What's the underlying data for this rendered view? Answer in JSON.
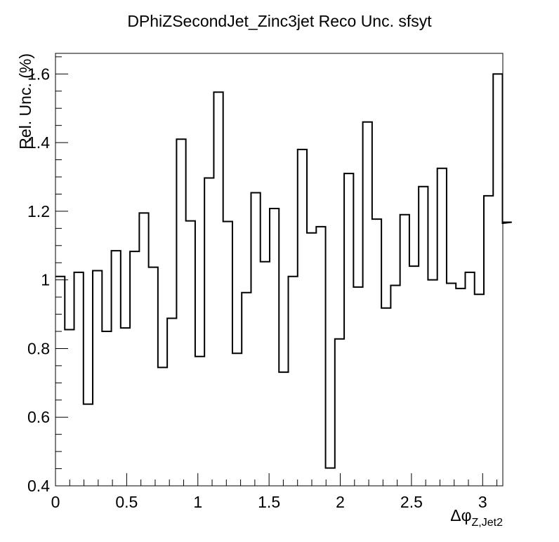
{
  "chart_data": {
    "type": "histogram",
    "title": "DPhiZSecondJet_Zinc3jet Reco Unc. sfsyt",
    "xlabel": {
      "symbol": "Δφ",
      "subscript": "Z,Jet2"
    },
    "ylabel": "Rel. Unc. (%)",
    "xlim": [
      0,
      3.1416
    ],
    "ylim": [
      0.4,
      1.66
    ],
    "xticks": [
      {
        "value": 0,
        "label": "0"
      },
      {
        "value": 0.5,
        "label": "0.5"
      },
      {
        "value": 1,
        "label": "1"
      },
      {
        "value": 1.5,
        "label": "1.5"
      },
      {
        "value": 2,
        "label": "2"
      },
      {
        "value": 2.5,
        "label": "2.5"
      },
      {
        "value": 3,
        "label": "3"
      }
    ],
    "yticks": [
      {
        "value": 0.4,
        "label": "0.4"
      },
      {
        "value": 0.6,
        "label": "0.6"
      },
      {
        "value": 0.8,
        "label": "0.8"
      },
      {
        "value": 1.0,
        "label": "1"
      },
      {
        "value": 1.2,
        "label": "1.2"
      },
      {
        "value": 1.4,
        "label": "1.4"
      },
      {
        "value": 1.6,
        "label": "1.6"
      }
    ],
    "bin_width": 0.0654,
    "values": [
      1.01,
      0.855,
      1.022,
      0.638,
      1.027,
      0.85,
      1.085,
      0.86,
      1.083,
      1.195,
      1.037,
      0.745,
      0.888,
      1.41,
      1.172,
      0.777,
      1.297,
      1.547,
      1.17,
      0.786,
      0.963,
      1.254,
      1.053,
      1.208,
      0.731,
      1.01,
      1.38,
      1.137,
      1.155,
      0.452,
      0.828,
      1.31,
      0.979,
      1.46,
      1.177,
      0.918,
      0.984,
      1.19,
      1.04,
      1.272,
      1.0,
      1.325,
      0.99,
      0.975,
      1.022,
      0.958,
      1.245,
      1.6,
      1.165,
      1.168
    ]
  }
}
